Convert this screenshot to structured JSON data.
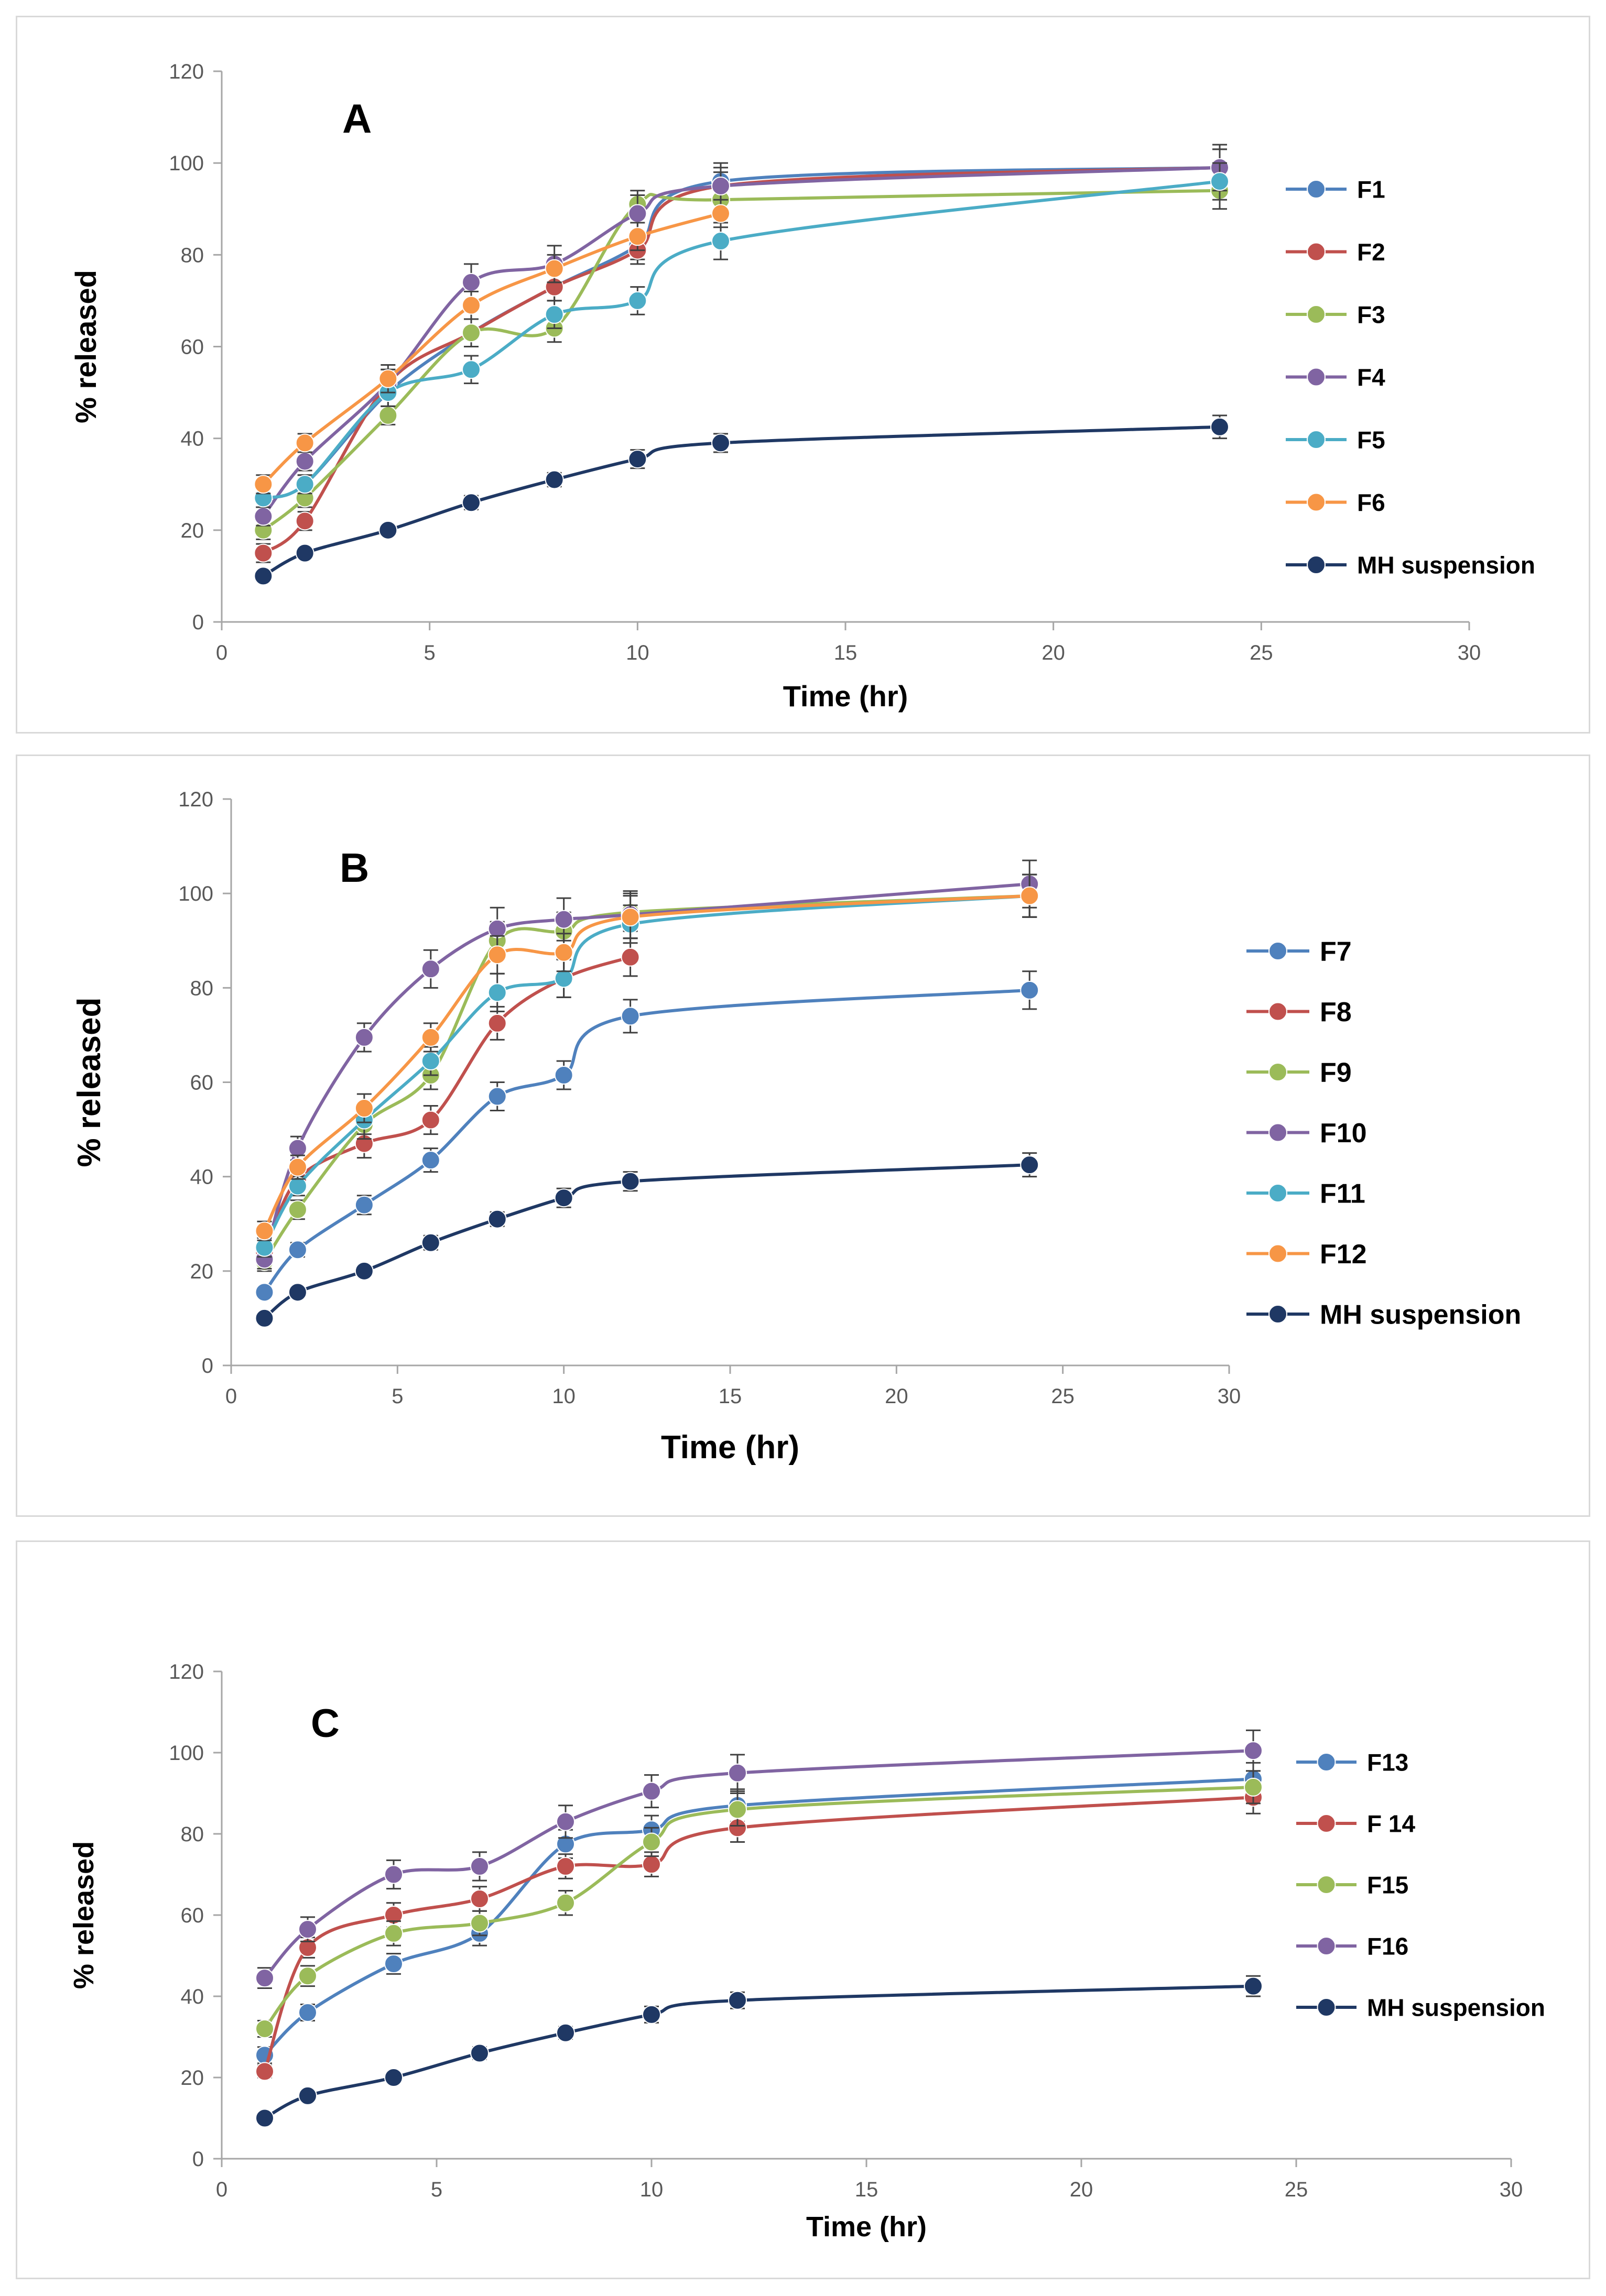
{
  "chart_data": [
    {
      "panel": "A",
      "type": "line",
      "title": "A",
      "xlabel": "Time (hr)",
      "ylabel": "% released",
      "xlim": [
        0,
        30
      ],
      "ylim": [
        0,
        120
      ],
      "xticks": [
        "0",
        "5",
        "10",
        "15",
        "20",
        "25",
        "30"
      ],
      "yticks": [
        "0",
        "20",
        "40",
        "60",
        "80",
        "100",
        "120"
      ],
      "legend_position": "right",
      "series": [
        {
          "name": "F1",
          "color": "#4f81bd",
          "x": [
            1,
            2,
            4,
            6,
            8,
            10,
            12,
            24
          ],
          "values": [
            27,
            30,
            50,
            63,
            73,
            82,
            96,
            99
          ],
          "err": [
            2,
            2,
            3,
            3,
            3,
            3,
            3,
            4
          ]
        },
        {
          "name": "F2",
          "color": "#c0504d",
          "x": [
            1,
            2,
            4,
            6,
            8,
            10,
            12,
            24
          ],
          "values": [
            15,
            22,
            52,
            63,
            73,
            81,
            95,
            99
          ],
          "err": [
            2,
            2,
            3,
            3,
            3,
            3,
            3,
            4
          ]
        },
        {
          "name": "F3",
          "color": "#9bbb59",
          "x": [
            1,
            2,
            4,
            6,
            8,
            10,
            12,
            24
          ],
          "values": [
            20,
            27,
            45,
            63,
            64,
            91,
            92,
            94
          ],
          "err": [
            2,
            2,
            2,
            3,
            3,
            3,
            3,
            4
          ]
        },
        {
          "name": "F4",
          "color": "#8064a2",
          "x": [
            1,
            2,
            4,
            6,
            8,
            10,
            12,
            24
          ],
          "values": [
            23,
            35,
            52,
            74,
            78,
            89,
            95,
            99
          ],
          "err": [
            2,
            2,
            3,
            4,
            4,
            4,
            5,
            5
          ]
        },
        {
          "name": "F5",
          "color": "#4bacc6",
          "x": [
            1,
            2,
            4,
            6,
            8,
            10,
            12,
            24
          ],
          "values": [
            27,
            30,
            50,
            55,
            67,
            70,
            83,
            96
          ],
          "err": [
            2,
            2,
            3,
            3,
            3,
            3,
            4,
            4
          ]
        },
        {
          "name": "F6",
          "color": "#f79646",
          "x": [
            1,
            2,
            4,
            6,
            8,
            10,
            12
          ],
          "values": [
            30,
            39,
            53,
            69,
            77,
            84,
            89
          ],
          "err": [
            2,
            2,
            3,
            3,
            3,
            3,
            3
          ]
        },
        {
          "name": "MH suspension",
          "color": "#1f3864",
          "x": [
            1,
            2,
            4,
            6,
            8,
            10,
            12,
            24
          ],
          "values": [
            10,
            15,
            20,
            26,
            31,
            35.5,
            39,
            42.5
          ],
          "err": [
            1,
            1,
            1,
            1.5,
            1.5,
            2,
            2,
            2.5
          ]
        }
      ]
    },
    {
      "panel": "B",
      "type": "line",
      "title": "B",
      "xlabel": "Time (hr)",
      "ylabel": "% released",
      "xlim": [
        0,
        30
      ],
      "ylim": [
        0,
        120
      ],
      "xticks": [
        "0",
        "5",
        "10",
        "15",
        "20",
        "25",
        "30"
      ],
      "yticks": [
        "0",
        "20",
        "40",
        "60",
        "80",
        "100",
        "120"
      ],
      "legend_position": "right",
      "series": [
        {
          "name": "F7",
          "color": "#4f81bd",
          "x": [
            1,
            2,
            4,
            6,
            8,
            10,
            12,
            24
          ],
          "values": [
            15.5,
            24.5,
            34,
            43.5,
            57,
            61.5,
            74,
            79.5
          ],
          "err": [
            1,
            1.5,
            2,
            2.5,
            3,
            3,
            3.5,
            4
          ]
        },
        {
          "name": "F8",
          "color": "#c0504d",
          "x": [
            1,
            2,
            4,
            6,
            8,
            10,
            12
          ],
          "values": [
            24,
            39.5,
            47,
            52,
            72.5,
            82,
            86.5
          ],
          "err": [
            2,
            2.5,
            3,
            3,
            3.5,
            4,
            4
          ]
        },
        {
          "name": "F9",
          "color": "#9bbb59",
          "x": [
            1,
            2,
            4,
            6,
            8,
            10,
            12,
            24
          ],
          "values": [
            22,
            33,
            51,
            61.5,
            90,
            92,
            96,
            99.5
          ],
          "err": [
            2,
            2,
            3,
            3,
            4,
            4,
            4,
            4.5
          ]
        },
        {
          "name": "F10",
          "color": "#8064a2",
          "x": [
            1,
            2,
            4,
            6,
            8,
            10,
            12,
            24
          ],
          "values": [
            22.5,
            46,
            69.5,
            84,
            92.5,
            94.5,
            95.5,
            102
          ],
          "err": [
            2,
            2.5,
            3,
            4,
            4.5,
            4.5,
            5,
            5
          ]
        },
        {
          "name": "F11",
          "color": "#4bacc6",
          "x": [
            1,
            2,
            4,
            6,
            8,
            10,
            12,
            24
          ],
          "values": [
            25,
            38,
            52,
            64.5,
            79,
            82,
            93.5,
            99.5
          ],
          "err": [
            2,
            2,
            3,
            3,
            4,
            4,
            4,
            4.5
          ]
        },
        {
          "name": "F12",
          "color": "#f79646",
          "x": [
            1,
            2,
            4,
            6,
            8,
            10,
            12,
            24
          ],
          "values": [
            28.5,
            42,
            54.5,
            69.5,
            87,
            87.5,
            95,
            99.5
          ],
          "err": [
            2,
            2.5,
            3,
            3,
            4,
            4,
            4.5,
            4.5
          ]
        },
        {
          "name": "MH suspension",
          "color": "#1f3864",
          "x": [
            1,
            2,
            4,
            6,
            8,
            10,
            12,
            24
          ],
          "values": [
            10,
            15.5,
            20,
            26,
            31,
            35.5,
            39,
            42.5
          ],
          "err": [
            1,
            1,
            1,
            1.5,
            1.5,
            2,
            2,
            2.5
          ]
        }
      ]
    },
    {
      "panel": "C",
      "type": "line",
      "title": "C",
      "xlabel": "Time (hr)",
      "ylabel": "% released",
      "xlim": [
        0,
        30
      ],
      "ylim": [
        0,
        120
      ],
      "xticks": [
        "0",
        "5",
        "10",
        "15",
        "20",
        "25",
        "30"
      ],
      "yticks": [
        "0",
        "20",
        "40",
        "60",
        "80",
        "100",
        "120"
      ],
      "legend_position": "right",
      "series": [
        {
          "name": "F13",
          "color": "#4f81bd",
          "x": [
            1,
            2,
            4,
            6,
            8,
            10,
            12,
            24
          ],
          "values": [
            25.5,
            36,
            48,
            55.5,
            77.5,
            81,
            87,
            93.5
          ],
          "err": [
            2,
            2,
            2.5,
            3,
            3.5,
            3.5,
            4,
            4
          ]
        },
        {
          "name": "F 14",
          "color": "#c0504d",
          "x": [
            1,
            2,
            4,
            6,
            8,
            10,
            12,
            24
          ],
          "values": [
            21.5,
            52,
            60,
            64,
            72,
            72.5,
            81.5,
            89
          ],
          "err": [
            1.5,
            2.5,
            3,
            3,
            3,
            3,
            3.5,
            4
          ]
        },
        {
          "name": "F15",
          "color": "#9bbb59",
          "x": [
            1,
            2,
            4,
            6,
            8,
            10,
            12,
            24
          ],
          "values": [
            32,
            45,
            55.5,
            58,
            63,
            78,
            86,
            91.5
          ],
          "err": [
            2,
            2.5,
            3,
            3,
            3,
            3.5,
            4,
            4
          ]
        },
        {
          "name": "F16",
          "color": "#8064a2",
          "x": [
            1,
            2,
            4,
            6,
            8,
            10,
            12,
            24
          ],
          "values": [
            44.5,
            56.5,
            70,
            72,
            83,
            90.5,
            95,
            100.5
          ],
          "err": [
            2.5,
            3,
            3.5,
            3.5,
            4,
            4,
            4.5,
            5
          ]
        },
        {
          "name": "MH suspension",
          "color": "#1f3864",
          "x": [
            1,
            2,
            4,
            6,
            8,
            10,
            12,
            24
          ],
          "values": [
            10,
            15.5,
            20,
            26,
            31,
            35.5,
            39,
            42.5
          ],
          "err": [
            1,
            1,
            1,
            1.5,
            1.5,
            2,
            2,
            2.5
          ]
        }
      ]
    }
  ]
}
